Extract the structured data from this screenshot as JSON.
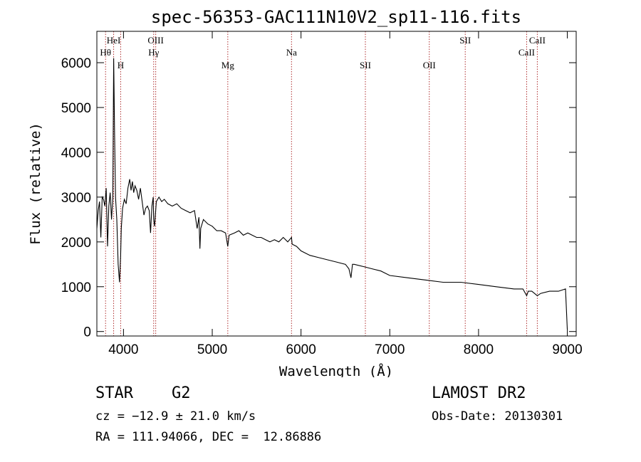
{
  "chart_data": {
    "type": "line",
    "title": "spec-56353-GAC111N10V2_sp11-116.fits",
    "xlabel": "Wavelength (Å)",
    "ylabel": "Flux (relative)",
    "xlim": [
      3700,
      9100
    ],
    "ylim": [
      -100,
      6700
    ],
    "xticks": [
      4000,
      5000,
      6000,
      7000,
      8000,
      9000
    ],
    "yticks": [
      0,
      1000,
      2000,
      3000,
      4000,
      5000,
      6000
    ],
    "grid": false,
    "spectral_lines": [
      {
        "label": "Hθ",
        "x": 3798,
        "tier": 2
      },
      {
        "label": "HeI",
        "x": 3889,
        "tier": 1
      },
      {
        "label": "H",
        "x": 3968,
        "tier": 3
      },
      {
        "label": "OIII",
        "x": 4363,
        "tier": 1
      },
      {
        "label": "Hγ",
        "x": 4340,
        "tier": 2
      },
      {
        "label": "Mg",
        "x": 5175,
        "tier": 3
      },
      {
        "label": "Na",
        "x": 5893,
        "tier": 2
      },
      {
        "label": "SII",
        "x": 6725,
        "tier": 3
      },
      {
        "label": "OII",
        "x": 7445,
        "tier": 3
      },
      {
        "label": "SII",
        "x": 7850,
        "tier": 1
      },
      {
        "label": "CaII",
        "x": 8542,
        "tier": 2
      },
      {
        "label": "CaII",
        "x": 8662,
        "tier": 1
      }
    ],
    "series": [
      {
        "color": "#000000",
        "x": [
          3700,
          3715,
          3730,
          3745,
          3760,
          3775,
          3790,
          3805,
          3820,
          3835,
          3850,
          3865,
          3880,
          3889,
          3895,
          3900,
          3910,
          3925,
          3940,
          3955,
          3968,
          3975,
          3990,
          4010,
          4030,
          4050,
          4070,
          4085,
          4100,
          4115,
          4130,
          4150,
          4170,
          4190,
          4210,
          4230,
          4250,
          4270,
          4290,
          4305,
          4320,
          4335,
          4340,
          4350,
          4370,
          4400,
          4430,
          4460,
          4500,
          4550,
          4600,
          4650,
          4700,
          4750,
          4800,
          4830,
          4850,
          4861,
          4870,
          4900,
          4950,
          5000,
          5050,
          5100,
          5150,
          5175,
          5190,
          5250,
          5300,
          5350,
          5400,
          5450,
          5500,
          5550,
          5600,
          5650,
          5700,
          5750,
          5800,
          5850,
          5893,
          5900,
          5950,
          6000,
          6100,
          6200,
          6300,
          6400,
          6500,
          6540,
          6563,
          6580,
          6600,
          6700,
          6800,
          6900,
          7000,
          7200,
          7400,
          7600,
          7800,
          8000,
          8200,
          8400,
          8500,
          8542,
          8560,
          8600,
          8662,
          8700,
          8800,
          8900,
          8980,
          9000
        ],
        "y": [
          2300,
          2700,
          2900,
          2100,
          3000,
          2950,
          2800,
          3200,
          1900,
          2800,
          3100,
          2500,
          3000,
          6100,
          5200,
          4400,
          3000,
          2500,
          1500,
          1100,
          1700,
          2300,
          2750,
          2950,
          2850,
          3200,
          3400,
          3150,
          3350,
          3100,
          3250,
          3150,
          2950,
          3200,
          2900,
          2600,
          2750,
          2800,
          2700,
          2200,
          2800,
          3000,
          2500,
          2350,
          2900,
          3000,
          2900,
          2950,
          2850,
          2800,
          2850,
          2750,
          2700,
          2650,
          2700,
          2300,
          2550,
          1850,
          2300,
          2500,
          2400,
          2350,
          2250,
          2250,
          2200,
          1900,
          2150,
          2200,
          2250,
          2150,
          2200,
          2150,
          2100,
          2100,
          2050,
          2000,
          2050,
          2000,
          2100,
          2000,
          2100,
          1950,
          1900,
          1800,
          1700,
          1650,
          1600,
          1550,
          1500,
          1400,
          1200,
          1500,
          1500,
          1450,
          1400,
          1350,
          1250,
          1200,
          1150,
          1100,
          1100,
          1050,
          1000,
          950,
          950,
          800,
          900,
          900,
          800,
          850,
          900,
          900,
          950,
          50
        ]
      }
    ]
  },
  "info": {
    "object_class": "STAR",
    "subclass": "G2",
    "survey": "LAMOST DR2",
    "cz": "cz = −12.9 ± 21.0 km/s",
    "obs_date": "Obs-Date: 20130301",
    "coords": "RA = 111.94066, DEC =  12.86886"
  }
}
